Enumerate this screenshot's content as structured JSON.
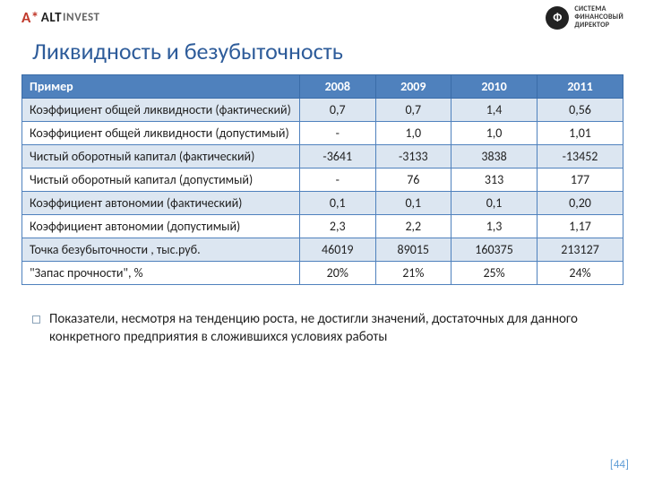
{
  "brand": {
    "mark": "A*",
    "alt": "ALT",
    "invest": "INVEST",
    "fd_symbol": "Ф",
    "fd_line1": "СИСТЕМА",
    "fd_line2": "ФИНАНСОВЫЙ",
    "fd_line3": "ДИРЕКТОР"
  },
  "title": "Ликвидность и безубыточность",
  "table": {
    "header_label": "Пример",
    "columns": [
      "2008",
      "2009",
      "2010",
      "2011"
    ],
    "rows": [
      {
        "label": "Коэффициент общей ликвидности (фактический)",
        "cells": [
          "0,7",
          "0,7",
          "1,4",
          "0,56"
        ],
        "band": true
      },
      {
        "label": "Коэффициент общей ликвидности (допустимый)",
        "cells": [
          "-",
          "1,0",
          "1,0",
          "1,01"
        ],
        "band": false
      },
      {
        "label": "Чистый оборотный капитал (фактический)",
        "cells": [
          "-3641",
          "-3133",
          "3838",
          "-13452"
        ],
        "band": true
      },
      {
        "label": "Чистый оборотный капитал (допустимый)",
        "cells": [
          "-",
          "76",
          "313",
          "177"
        ],
        "band": false
      },
      {
        "label": "Коэффициент автономии (фактический)",
        "cells": [
          "0,1",
          "0,1",
          "0,1",
          "0,20"
        ],
        "band": true
      },
      {
        "label": "Коэффициент автономии (допустимый)",
        "cells": [
          "2,3",
          "2,2",
          "1,3",
          "1,17"
        ],
        "band": false
      },
      {
        "label": "Точка безубыточности , тыс.руб.",
        "cells": [
          "46019",
          "89015",
          "160375",
          "213127"
        ],
        "band": true
      },
      {
        "label": "\"Запас прочности\", %",
        "cells": [
          "20%",
          "21%",
          "25%",
          "24%"
        ],
        "band": false
      }
    ],
    "header_bg": "#4f81bd",
    "header_fg": "#ffffff",
    "band_bg": "#dce6f1",
    "border_color": "#4f81bd"
  },
  "note": "Показатели, несмотря на тенденцию роста, не достигли значений, достаточных для данного конкретного предприятия в сложившихся условиях работы",
  "page_number": "[44]"
}
